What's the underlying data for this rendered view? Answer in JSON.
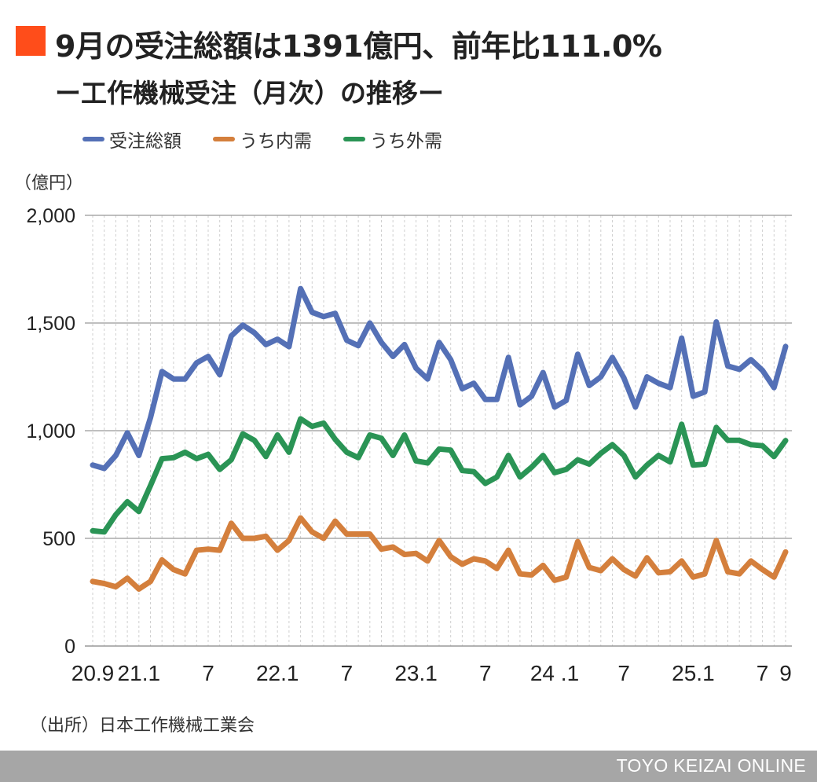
{
  "title": {
    "line1": "9月の受注総額は1391億円、前年比111.0%",
    "line2": "ー工作機械受注（月次）の推移ー"
  },
  "colors": {
    "accent": "#ff4d1a",
    "total": "#5470b6",
    "domestic": "#d47f3c",
    "foreign": "#2a9455",
    "grid": "#999999",
    "footer_bg": "#a6a6a6"
  },
  "legend": [
    {
      "label": "受注総額",
      "color": "#5470b6"
    },
    {
      "label": "うち内需",
      "color": "#d47f3c"
    },
    {
      "label": "うち外需",
      "color": "#2a9455"
    }
  ],
  "y_unit": "（億円）",
  "source": "（出所）日本工作機械工業会",
  "footer": "TOYO KEIZAI ONLINE",
  "chart_data": {
    "type": "line",
    "title": "9月の受注総額は1391億円、前年比111.0%",
    "subtitle": "ー工作機械受注（月次）の推移ー",
    "xlabel": "",
    "ylabel": "（億円）",
    "ylim": [
      0,
      2000
    ],
    "yticks": [
      {
        "value": 0,
        "label": "0"
      },
      {
        "value": 500,
        "label": "500"
      },
      {
        "value": 1000,
        "label": "1,000"
      },
      {
        "value": 1500,
        "label": "1,500"
      },
      {
        "value": 2000,
        "label": "2,000"
      }
    ],
    "x_start": "2020-09",
    "x_end": "2025-09",
    "xticks": [
      {
        "index": 0,
        "label": "20.9"
      },
      {
        "index": 4,
        "label": "21.1"
      },
      {
        "index": 10,
        "label": "7"
      },
      {
        "index": 16,
        "label": "22.1"
      },
      {
        "index": 22,
        "label": "7"
      },
      {
        "index": 28,
        "label": "23.1"
      },
      {
        "index": 34,
        "label": "7"
      },
      {
        "index": 40,
        "label": "24 .1"
      },
      {
        "index": 46,
        "label": "7"
      },
      {
        "index": 52,
        "label": "25.1"
      },
      {
        "index": 58,
        "label": "7"
      },
      {
        "index": 60,
        "label": "9"
      }
    ],
    "grid": "horizontal major lines, vertical dashed minor lines per month",
    "legend_position": "top-left",
    "series": [
      {
        "name": "受注総額",
        "color": "#5470b6",
        "values": [
          840,
          825,
          885,
          990,
          885,
          1060,
          1275,
          1240,
          1240,
          1315,
          1345,
          1260,
          1440,
          1490,
          1455,
          1400,
          1425,
          1390,
          1660,
          1550,
          1530,
          1545,
          1420,
          1395,
          1500,
          1410,
          1345,
          1400,
          1290,
          1240,
          1410,
          1330,
          1195,
          1220,
          1145,
          1145,
          1340,
          1120,
          1160,
          1270,
          1110,
          1140,
          1355,
          1210,
          1250,
          1340,
          1245,
          1110,
          1250,
          1220,
          1200,
          1430,
          1160,
          1180,
          1505,
          1300,
          1285,
          1330,
          1280,
          1200,
          1391
        ]
      },
      {
        "name": "うち内需",
        "color": "#d47f3c",
        "values": [
          300,
          290,
          275,
          315,
          265,
          300,
          400,
          355,
          335,
          445,
          450,
          445,
          570,
          500,
          500,
          510,
          445,
          490,
          595,
          530,
          500,
          580,
          520,
          520,
          520,
          450,
          460,
          425,
          430,
          395,
          490,
          415,
          380,
          405,
          395,
          360,
          445,
          335,
          330,
          375,
          305,
          320,
          485,
          365,
          350,
          405,
          355,
          325,
          410,
          340,
          345,
          395,
          320,
          335,
          490,
          345,
          335,
          395,
          355,
          320,
          437
        ]
      },
      {
        "name": "うち外需",
        "color": "#2a9455",
        "values": [
          535,
          530,
          610,
          670,
          625,
          745,
          870,
          875,
          900,
          870,
          890,
          820,
          865,
          985,
          955,
          880,
          980,
          900,
          1055,
          1020,
          1035,
          960,
          900,
          875,
          980,
          965,
          885,
          980,
          860,
          850,
          915,
          910,
          815,
          810,
          755,
          785,
          885,
          785,
          830,
          885,
          805,
          820,
          865,
          845,
          895,
          935,
          885,
          785,
          840,
          885,
          855,
          1030,
          840,
          845,
          1015,
          955,
          955,
          935,
          930,
          880,
          954
        ]
      }
    ]
  }
}
